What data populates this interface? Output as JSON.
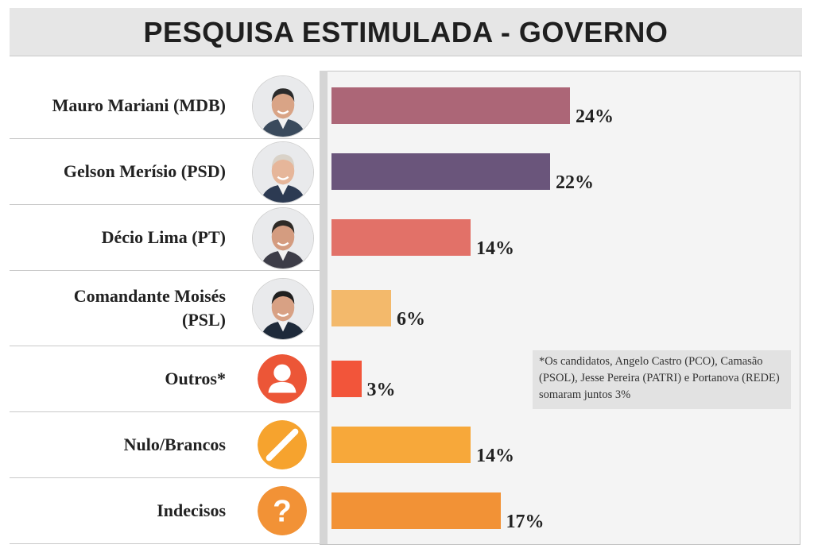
{
  "title": "PESQUISA ESTIMULADA - GOVERNO",
  "note": "*Os candidatos, Angelo Castro (PCO), Camasão (PSOL), Jesse Pereira (PATRI) e Portanova (REDE) somaram juntos 3%",
  "colors": {
    "mariani": "#ac6677",
    "merisio": "#6a557b",
    "lima": "#e27168",
    "moises": "#f3b96b",
    "outros": "#f2553a",
    "nulo": "#f7a83a",
    "indecisos": "#f29236",
    "icon_outros": "#ec5637",
    "icon_nulo": "#f6a32e",
    "icon_indecisos": "#f29236"
  },
  "rows": [
    {
      "label_lines": [
        "Mauro Mariani (MDB)"
      ],
      "value_label": "24%",
      "icon": "candidate-photo"
    },
    {
      "label_lines": [
        "Gelson Merísio (PSD)"
      ],
      "value_label": "22%",
      "icon": "candidate-photo"
    },
    {
      "label_lines": [
        "Décio Lima (PT)"
      ],
      "value_label": "14%",
      "icon": "candidate-photo"
    },
    {
      "label_lines": [
        "Comandante Moisés",
        "(PSL)"
      ],
      "value_label": "6%",
      "icon": "candidate-photo"
    },
    {
      "label_lines": [
        "Outros*"
      ],
      "value_label": "3%",
      "icon": "person-icon"
    },
    {
      "label_lines": [
        "Nulo/Brancos"
      ],
      "value_label": "14%",
      "icon": "null-slash-icon"
    },
    {
      "label_lines": [
        "Indecisos"
      ],
      "value_label": "17%",
      "icon": "question-mark-icon"
    }
  ],
  "chart_data": {
    "type": "bar",
    "orientation": "horizontal",
    "title": "PESQUISA ESTIMULADA - GOVERNO",
    "categories": [
      "Mauro Mariani (MDB)",
      "Gelson Merísio (PSD)",
      "Décio Lima (PT)",
      "Comandante Moisés (PSL)",
      "Outros*",
      "Nulo/Brancos",
      "Indecisos"
    ],
    "values": [
      24,
      22,
      14,
      6,
      3,
      14,
      17
    ],
    "unit": "%",
    "grid": false,
    "legend": "none"
  }
}
